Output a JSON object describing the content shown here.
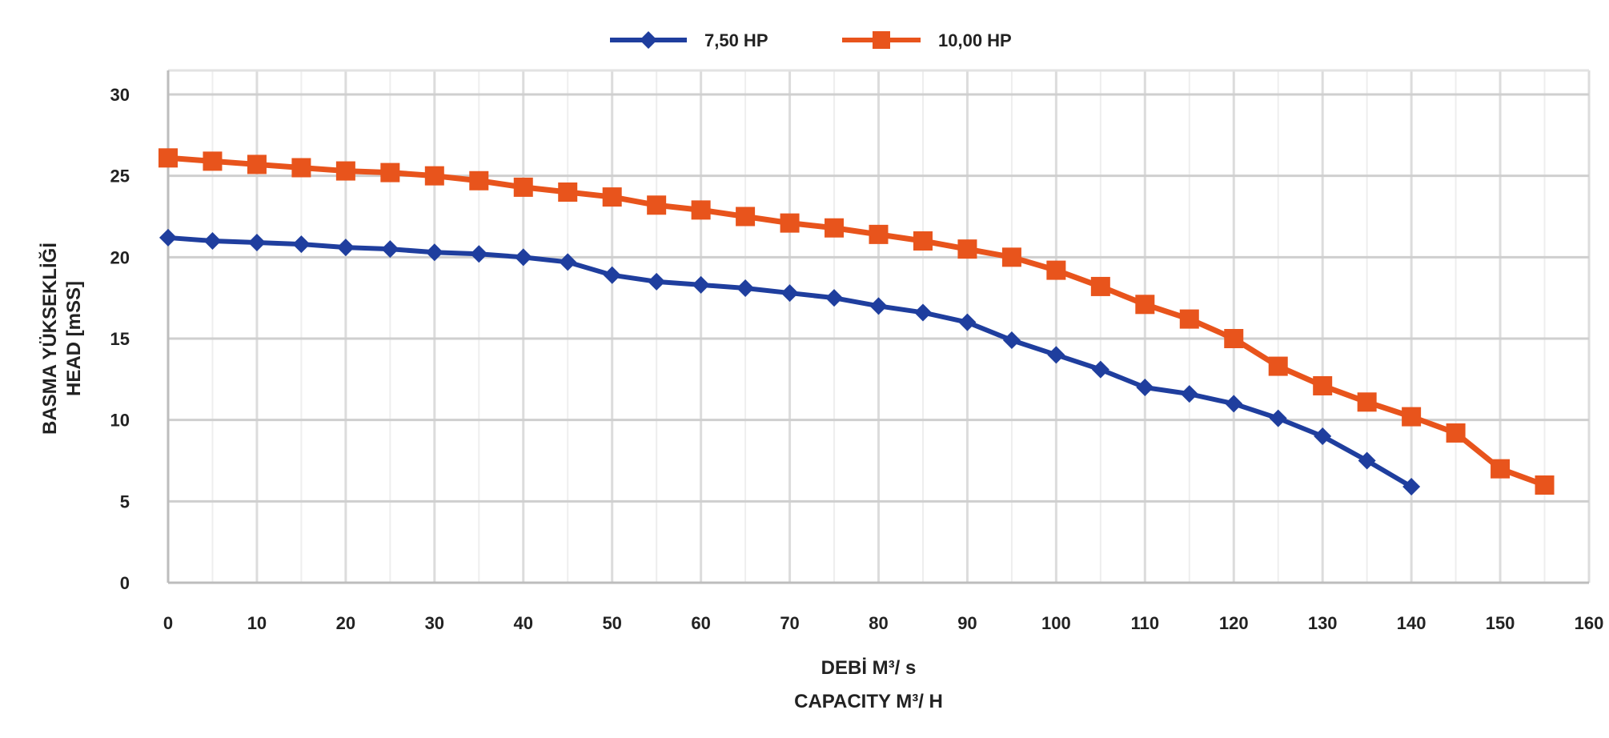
{
  "chart_data": {
    "type": "line",
    "title": "",
    "ylabel_lines": [
      "BASMA YÜKSEKLİĞİ",
      "HEAD [mSS]"
    ],
    "xlabel_lines": [
      "DEBİ M³/ s",
      "CAPACITY M³/ H"
    ],
    "xlim": [
      0,
      160
    ],
    "ylim": [
      0,
      30
    ],
    "x_ticks": [
      0,
      10,
      20,
      30,
      40,
      50,
      60,
      70,
      80,
      90,
      100,
      110,
      120,
      130,
      140,
      150,
      160
    ],
    "x_tick_labels": [
      "0",
      "10",
      "20",
      "30",
      "40",
      "50",
      "60",
      "70",
      "80",
      "90",
      "100",
      "110",
      "120",
      "130",
      "140",
      "150",
      "160"
    ],
    "y_ticks": [
      0,
      5,
      10,
      15,
      20,
      25,
      30
    ],
    "y_tick_labels": [
      "0",
      "5",
      "10",
      "15",
      "20",
      "25",
      "30"
    ],
    "grid": true,
    "legend_position": "top-center",
    "series": [
      {
        "name": "7,50 HP",
        "color": "#1f3e9e",
        "marker": "diamond",
        "x": [
          0,
          5,
          10,
          15,
          20,
          25,
          30,
          35,
          40,
          45,
          50,
          55,
          60,
          65,
          70,
          75,
          80,
          85,
          90,
          95,
          100,
          105,
          110,
          115,
          120,
          125,
          130,
          135,
          140
        ],
        "y": [
          21.2,
          21.0,
          20.9,
          20.8,
          20.6,
          20.5,
          20.3,
          20.2,
          20.0,
          19.7,
          18.9,
          18.5,
          18.3,
          18.1,
          17.8,
          17.5,
          17.0,
          16.6,
          16.0,
          14.9,
          14.0,
          13.1,
          12.0,
          11.6,
          11.0,
          10.1,
          9.0,
          7.5,
          5.9
        ]
      },
      {
        "name": "10,00 HP",
        "color": "#e8541c",
        "marker": "square",
        "x": [
          0,
          5,
          10,
          15,
          20,
          25,
          30,
          35,
          40,
          45,
          50,
          55,
          60,
          65,
          70,
          75,
          80,
          85,
          90,
          95,
          100,
          105,
          110,
          115,
          120,
          125,
          130,
          135,
          140,
          145,
          150,
          155
        ],
        "y": [
          26.1,
          25.9,
          25.7,
          25.5,
          25.3,
          25.2,
          25.0,
          24.7,
          24.3,
          24.0,
          23.7,
          23.2,
          22.9,
          22.5,
          22.1,
          21.8,
          21.4,
          21.0,
          20.5,
          20.0,
          19.2,
          18.2,
          17.1,
          16.2,
          15.0,
          13.3,
          12.1,
          11.1,
          10.2,
          9.2,
          7.0,
          6.0
        ]
      }
    ]
  }
}
